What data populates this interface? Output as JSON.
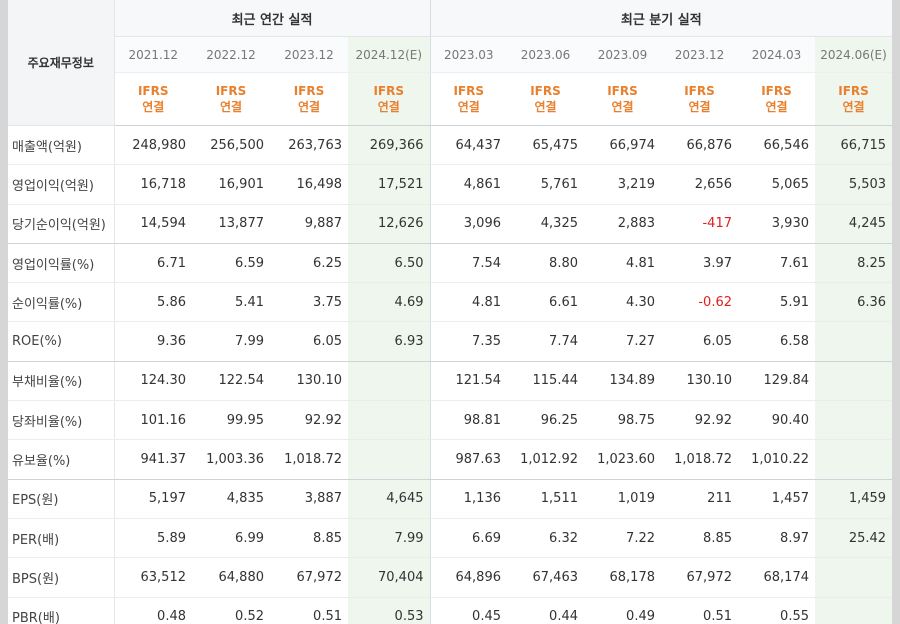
{
  "header": {
    "row_label": "주요재무정보",
    "annual_group": "최근 연간 실적",
    "quarter_group": "최근 분기 실적",
    "periods": [
      "2021.12",
      "2022.12",
      "2023.12",
      "2024.12(E)",
      "2023.03",
      "2023.06",
      "2023.09",
      "2023.12",
      "2024.03",
      "2024.06(E)"
    ],
    "ifrs_line1": "IFRS",
    "ifrs_line2": "연결"
  },
  "rows": [
    {
      "label": "매출액(억원)",
      "values": [
        "248,980",
        "256,500",
        "263,763",
        "269,366",
        "64,437",
        "65,475",
        "66,974",
        "66,876",
        "66,546",
        "66,715"
      ]
    },
    {
      "label": "영업이익(억원)",
      "values": [
        "16,718",
        "16,901",
        "16,498",
        "17,521",
        "4,861",
        "5,761",
        "3,219",
        "2,656",
        "5,065",
        "5,503"
      ]
    },
    {
      "label": "당기순이익(억원)",
      "values": [
        "14,594",
        "13,877",
        "9,887",
        "12,626",
        "3,096",
        "4,325",
        "2,883",
        "-417",
        "3,930",
        "4,245"
      ]
    },
    {
      "label": "영업이익률(%)",
      "values": [
        "6.71",
        "6.59",
        "6.25",
        "6.50",
        "7.54",
        "8.80",
        "4.81",
        "3.97",
        "7.61",
        "8.25"
      ]
    },
    {
      "label": "순이익률(%)",
      "values": [
        "5.86",
        "5.41",
        "3.75",
        "4.69",
        "4.81",
        "6.61",
        "4.30",
        "-0.62",
        "5.91",
        "6.36"
      ]
    },
    {
      "label": "ROE(%)",
      "values": [
        "9.36",
        "7.99",
        "6.05",
        "6.93",
        "7.35",
        "7.74",
        "7.27",
        "6.05",
        "6.58",
        ""
      ]
    },
    {
      "label": "부채비율(%)",
      "values": [
        "124.30",
        "122.54",
        "130.10",
        "",
        "121.54",
        "115.44",
        "134.89",
        "130.10",
        "129.84",
        ""
      ]
    },
    {
      "label": "당좌비율(%)",
      "values": [
        "101.16",
        "99.95",
        "92.92",
        "",
        "98.81",
        "96.25",
        "98.75",
        "92.92",
        "90.40",
        ""
      ]
    },
    {
      "label": "유보율(%)",
      "values": [
        "941.37",
        "1,003.36",
        "1,018.72",
        "",
        "987.63",
        "1,012.92",
        "1,023.60",
        "1,018.72",
        "1,010.22",
        ""
      ]
    },
    {
      "label": "EPS(원)",
      "values": [
        "5,197",
        "4,835",
        "3,887",
        "4,645",
        "1,136",
        "1,511",
        "1,019",
        "211",
        "1,457",
        "1,459"
      ]
    },
    {
      "label": "PER(배)",
      "values": [
        "5.89",
        "6.99",
        "8.85",
        "7.99",
        "6.69",
        "6.32",
        "7.22",
        "8.85",
        "8.97",
        "25.42"
      ]
    },
    {
      "label": "BPS(원)",
      "values": [
        "63,512",
        "64,880",
        "67,972",
        "70,404",
        "64,896",
        "67,463",
        "68,178",
        "67,972",
        "68,174",
        ""
      ]
    },
    {
      "label": "PBR(배)",
      "values": [
        "0.48",
        "0.52",
        "0.51",
        "0.53",
        "0.45",
        "0.44",
        "0.49",
        "0.51",
        "0.55",
        ""
      ]
    }
  ],
  "colors": {
    "ifrs": "#e8802e",
    "negative": "#e02020",
    "estimate_bg": "#f0f7f0"
  }
}
